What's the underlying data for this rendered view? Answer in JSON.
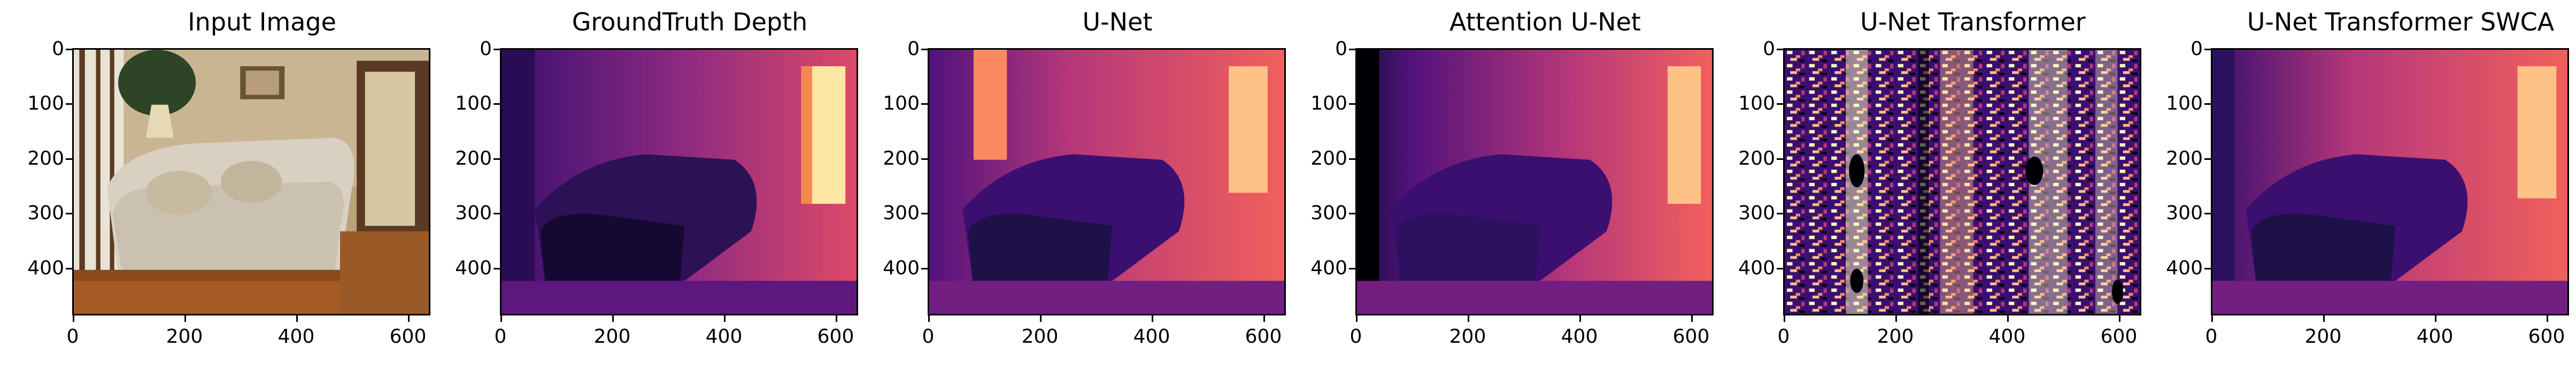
{
  "panels": [
    {
      "title": "Input Image"
    },
    {
      "title": "GroundTruth Depth"
    },
    {
      "title": "U-Net"
    },
    {
      "title": "Attention U-Net"
    },
    {
      "title": "U-Net Transformer"
    },
    {
      "title": "U-Net Transformer SWCA"
    }
  ],
  "axes": {
    "y_ticks": [
      "0",
      "100",
      "200",
      "300",
      "400"
    ],
    "x_ticks": [
      "0",
      "200",
      "400",
      "600"
    ]
  },
  "colors": {
    "depth_far": "#fcfdbf",
    "depth_mid": "#f1605d",
    "depth_purple": "#7b2382",
    "depth_near": "#000004"
  }
}
